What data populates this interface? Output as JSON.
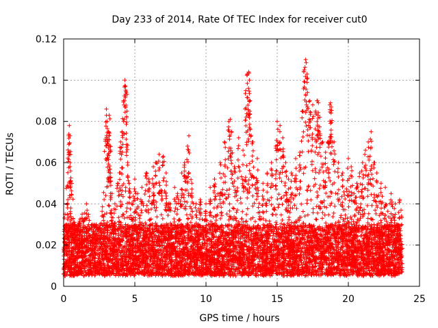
{
  "chart_data": {
    "type": "scatter",
    "title": "Day 233 of 2014, Rate Of TEC Index for receiver cut0",
    "xlabel": "GPS time / hours",
    "ylabel": "ROTI / TECUs",
    "xlim": [
      0,
      25
    ],
    "ylim": [
      0,
      0.12
    ],
    "x_ticks": [
      0,
      5,
      10,
      15,
      20,
      25
    ],
    "x_tick_labels": [
      "0",
      "5",
      "10",
      "15",
      "20",
      "25"
    ],
    "y_ticks": [
      0,
      0.02,
      0.04,
      0.06,
      0.08,
      0.1,
      0.12
    ],
    "y_tick_labels": [
      "0",
      "0.02",
      "0.04",
      "0.06",
      "0.08",
      "0.1",
      "0.12"
    ],
    "grid": true,
    "marker": "plus",
    "color": "#ff0000",
    "series": [
      {
        "name": "ROTI",
        "x": [
          0.1,
          0.3,
          0.35,
          0.4,
          0.45,
          0.5,
          0.8,
          1.0,
          1.3,
          1.6,
          2.0,
          2.4,
          2.8,
          3.0,
          3.05,
          3.1,
          3.15,
          3.2,
          3.25,
          3.3,
          3.4,
          3.6,
          3.8,
          4.0,
          4.1,
          4.2,
          4.3,
          4.35,
          4.4,
          4.45,
          4.5,
          4.6,
          4.8,
          5.0,
          5.2,
          5.5,
          5.8,
          6.0,
          6.3,
          6.5,
          6.7,
          7.0,
          7.2,
          7.5,
          7.8,
          8.0,
          8.3,
          8.5,
          8.7,
          8.8,
          9.0,
          9.3,
          9.6,
          10.0,
          10.3,
          10.6,
          11.0,
          11.3,
          11.6,
          11.7,
          11.8,
          12.0,
          12.3,
          12.6,
          12.8,
          12.9,
          13.0,
          13.05,
          13.1,
          13.3,
          13.6,
          14.0,
          14.3,
          14.6,
          14.9,
          15.0,
          15.2,
          15.4,
          15.6,
          15.8,
          16.0,
          16.3,
          16.6,
          16.8,
          16.9,
          17.0,
          17.1,
          17.3,
          17.5,
          17.7,
          17.8,
          17.9,
          18.0,
          18.2,
          18.4,
          18.6,
          18.7,
          18.75,
          18.8,
          19.0,
          19.3,
          19.6,
          20.0,
          20.2,
          20.4,
          20.6,
          20.8,
          21.0,
          21.2,
          21.4,
          21.6,
          21.8,
          22.0,
          22.3,
          22.6,
          23.0,
          23.3,
          23.6
        ],
        "y": [
          0.035,
          0.042,
          0.073,
          0.078,
          0.06,
          0.038,
          0.03,
          0.028,
          0.035,
          0.04,
          0.03,
          0.028,
          0.032,
          0.086,
          0.08,
          0.07,
          0.075,
          0.083,
          0.068,
          0.055,
          0.045,
          0.04,
          0.05,
          0.07,
          0.075,
          0.09,
          0.1,
          0.097,
          0.094,
          0.085,
          0.06,
          0.05,
          0.04,
          0.052,
          0.045,
          0.048,
          0.055,
          0.052,
          0.058,
          0.06,
          0.064,
          0.063,
          0.055,
          0.04,
          0.048,
          0.045,
          0.055,
          0.06,
          0.068,
          0.073,
          0.05,
          0.04,
          0.042,
          0.04,
          0.048,
          0.052,
          0.06,
          0.07,
          0.08,
          0.081,
          0.075,
          0.058,
          0.072,
          0.066,
          0.095,
          0.103,
          0.104,
          0.1,
          0.09,
          0.07,
          0.062,
          0.05,
          0.055,
          0.06,
          0.068,
          0.08,
          0.078,
          0.072,
          0.06,
          0.052,
          0.055,
          0.062,
          0.065,
          0.085,
          0.105,
          0.11,
          0.103,
          0.09,
          0.088,
          0.085,
          0.09,
          0.089,
          0.082,
          0.07,
          0.065,
          0.07,
          0.088,
          0.089,
          0.087,
          0.07,
          0.06,
          0.055,
          0.062,
          0.058,
          0.045,
          0.05,
          0.055,
          0.06,
          0.066,
          0.07,
          0.075,
          0.06,
          0.055,
          0.05,
          0.048,
          0.045,
          0.04,
          0.042
        ]
      }
    ],
    "density_band": {
      "x_range": [
        0,
        23.8
      ],
      "baseline_range": [
        0.005,
        0.03
      ],
      "points": 7500
    }
  }
}
